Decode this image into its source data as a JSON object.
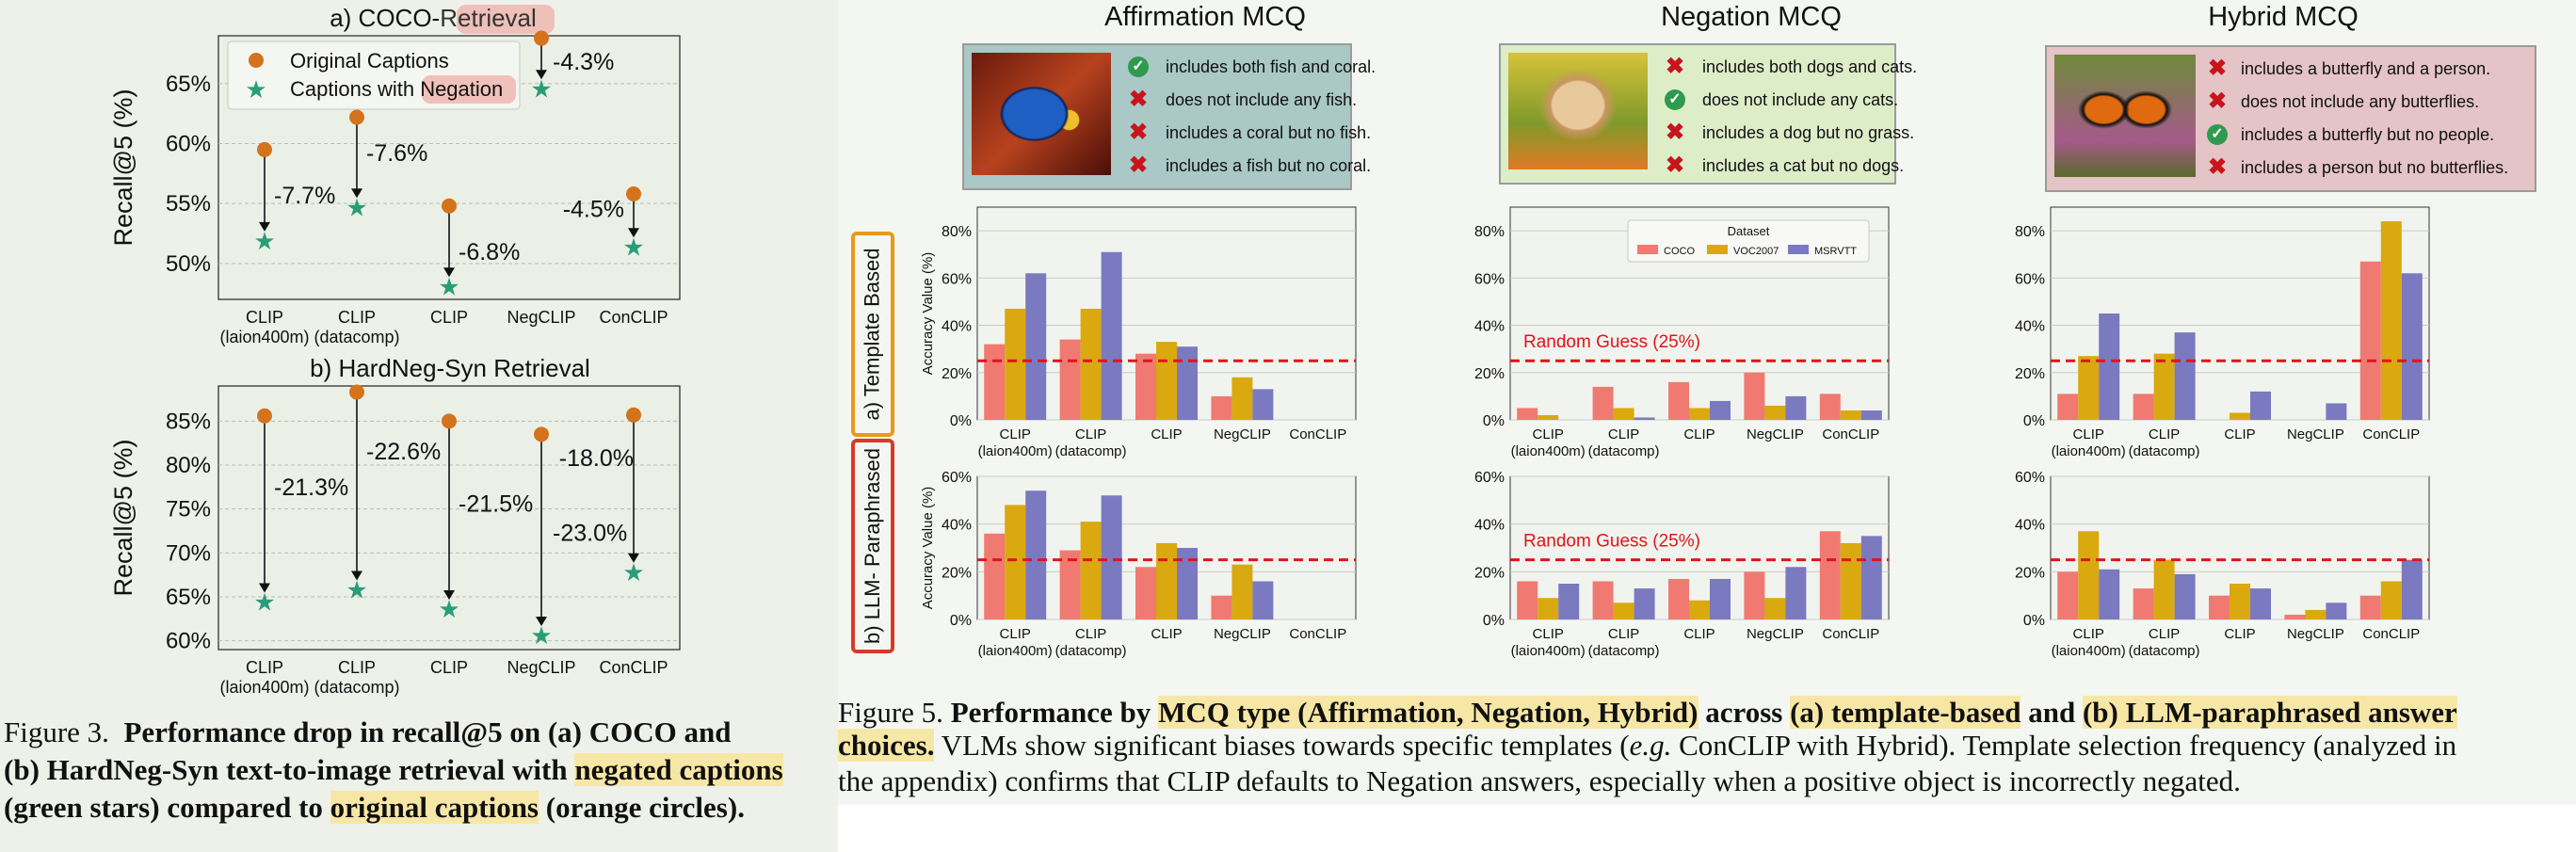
{
  "fig3": {
    "caption_prefix": "Figure 3.",
    "caption_bold_1": "Performance drop in recall@5 on (a) COCO and",
    "caption_bold_2": "(b) HardNeg-Syn text-to-image retrieval with",
    "caption_hl_neg": "negated captions",
    "caption_bold_3": "(green stars) compared to",
    "caption_hl_orig": "original captions",
    "caption_end": "(orange circles)."
  },
  "fig5": {
    "caption_prefix": "Figure 5.",
    "caption_bold_1": "Performance by",
    "caption_hl_1": "MCQ type (Affirmation, Negation, Hybrid)",
    "caption_bold_2": "across",
    "caption_hl_2": "(a) template-based",
    "caption_bold_3": "and",
    "caption_hl_3": "(b) LLM-paraphrased answer",
    "caption_hl_4": "choices.",
    "caption_line2_rest": "VLMs show significant biases towards specific templates (",
    "caption_eg": "e.g.",
    "caption_line2_end": "ConCLIP with Hybrid). Template selection frequency (analyzed in",
    "caption_line3": "the appendix) confirms that CLIP defaults to Negation answers, especially when a positive object is incorrectly negated.",
    "row_labels": [
      "a) Template Based",
      "b) LLM- Paraphrased"
    ],
    "mcq": [
      {
        "title": "Affirmation MCQ",
        "bg": "#a9c8c6",
        "image": "blue-fish-photo",
        "options": [
          {
            "text": "includes both fish and coral.",
            "correct": true
          },
          {
            "text": "does not include any fish.",
            "correct": false
          },
          {
            "text": "includes a coral but no fish.",
            "correct": false
          },
          {
            "text": "includes a fish but no coral.",
            "correct": false
          }
        ]
      },
      {
        "title": "Negation MCQ",
        "bg": "#dcedc8",
        "image": "puppy-photo",
        "options": [
          {
            "text": "includes both dogs and cats.",
            "correct": false
          },
          {
            "text": "does not include any cats.",
            "correct": true
          },
          {
            "text": "includes a dog but no grass.",
            "correct": false
          },
          {
            "text": "includes a cat but no dogs.",
            "correct": false
          }
        ]
      },
      {
        "title": "Hybrid MCQ",
        "bg": "#e4c4c6",
        "image": "butterfly-photo",
        "options": [
          {
            "text": "includes a butterfly and a person.",
            "correct": false
          },
          {
            "text": "does not include any butterflies.",
            "correct": false
          },
          {
            "text": "includes a butterfly but no people.",
            "correct": true
          },
          {
            "text": "includes a person but no butterflies.",
            "correct": false
          }
        ]
      }
    ]
  },
  "colors": {
    "orange": "#d4731c",
    "green": "#2a9d78",
    "coco": "#f07a72",
    "voc": "#d9a90f",
    "msr": "#7b79c0",
    "random": "#e0141b",
    "template_border": "#e89a17",
    "llm_border": "#d83a2a"
  },
  "chart_data": [
    {
      "id": "coco",
      "type": "scatter",
      "title_prefix": "a) COCO-",
      "title_hl": "Retrieval",
      "ylabel": "Recall@5 (%)",
      "categories": [
        "CLIP\n(laion400m)",
        "CLIP\n(datacomp)",
        "CLIP",
        "NegCLIP",
        "ConCLIP"
      ],
      "ylim": [
        47,
        69
      ],
      "yticks": [
        50,
        55,
        60,
        65
      ],
      "series": [
        {
          "name": "Original Captions",
          "values": [
            59.5,
            62.2,
            54.8,
            68.8,
            55.8
          ]
        },
        {
          "name": "Captions with Negation",
          "values": [
            51.8,
            54.6,
            48.0,
            64.5,
            51.3
          ]
        }
      ],
      "drops": [
        "-7.7%",
        "-7.6%",
        "-6.8%",
        "-4.3%",
        "-4.5%"
      ],
      "legend_hl_word": "Negation",
      "legend_position": "top-left"
    },
    {
      "id": "hardneg",
      "type": "scatter",
      "title": "b) HardNeg-Syn Retrieval",
      "ylabel": "Recall@5 (%)",
      "categories": [
        "CLIP\n(laion400m)",
        "CLIP\n(datacomp)",
        "CLIP",
        "NegCLIP",
        "ConCLIP"
      ],
      "ylim": [
        59,
        89
      ],
      "yticks": [
        60,
        65,
        70,
        75,
        80,
        85
      ],
      "series": [
        {
          "name": "Original Captions",
          "values": [
            85.6,
            88.3,
            85.0,
            83.5,
            85.7
          ]
        },
        {
          "name": "Captions with Negation",
          "values": [
            64.3,
            65.7,
            63.5,
            60.5,
            67.7
          ]
        }
      ],
      "drops": [
        "-21.3%",
        "-22.6%",
        "-21.5%",
        "-23.0%",
        "-18.0%"
      ]
    },
    {
      "id": "template-affirmation",
      "type": "bar",
      "categories": [
        "CLIP\n(laion400m)",
        "CLIP\n(datacomp)",
        "CLIP",
        "NegCLIP",
        "ConCLIP"
      ],
      "ylim": [
        0,
        90
      ],
      "yticks": [
        0,
        20,
        40,
        60,
        80
      ],
      "ylabel": "Accuracy Value (%)",
      "series": [
        {
          "name": "COCO",
          "values": [
            32,
            34,
            28,
            10,
            0
          ]
        },
        {
          "name": "VOC2007",
          "values": [
            47,
            47,
            33,
            18,
            0
          ]
        },
        {
          "name": "MSRVTT",
          "values": [
            62,
            71,
            31,
            13,
            0
          ]
        }
      ],
      "random_guess": 25
    },
    {
      "id": "template-negation",
      "type": "bar",
      "categories": [
        "CLIP\n(laion400m)",
        "CLIP\n(datacomp)",
        "CLIP",
        "NegCLIP",
        "ConCLIP"
      ],
      "ylim": [
        0,
        90
      ],
      "yticks": [
        0,
        20,
        40,
        60,
        80
      ],
      "series": [
        {
          "name": "COCO",
          "values": [
            5,
            14,
            16,
            20,
            11
          ]
        },
        {
          "name": "VOC2007",
          "values": [
            2,
            5,
            5,
            6,
            4
          ]
        },
        {
          "name": "MSRVTT",
          "values": [
            0,
            1,
            8,
            10,
            4
          ]
        }
      ],
      "random_guess": 25,
      "random_label": "Random Guess (25%)",
      "legend": {
        "title": "Dataset",
        "items": [
          "COCO",
          "VOC2007",
          "MSRVTT"
        ],
        "position": "top-center"
      }
    },
    {
      "id": "template-hybrid",
      "type": "bar",
      "categories": [
        "CLIP\n(laion400m)",
        "CLIP\n(datacomp)",
        "CLIP",
        "NegCLIP",
        "ConCLIP"
      ],
      "ylim": [
        0,
        90
      ],
      "yticks": [
        0,
        20,
        40,
        60,
        80
      ],
      "series": [
        {
          "name": "COCO",
          "values": [
            11,
            11,
            0,
            0,
            67
          ]
        },
        {
          "name": "VOC2007",
          "values": [
            27,
            28,
            3,
            0,
            84
          ]
        },
        {
          "name": "MSRVTT",
          "values": [
            45,
            37,
            12,
            7,
            62
          ]
        }
      ],
      "random_guess": 25
    },
    {
      "id": "llm-affirmation",
      "type": "bar",
      "categories": [
        "CLIP\n(laion400m)",
        "CLIP\n(datacomp)",
        "CLIP",
        "NegCLIP",
        "ConCLIP"
      ],
      "ylim": [
        0,
        60
      ],
      "yticks": [
        0,
        20,
        40,
        60
      ],
      "ylabel": "Accuracy Value (%)",
      "series": [
        {
          "name": "COCO",
          "values": [
            36,
            29,
            22,
            10,
            0
          ]
        },
        {
          "name": "VOC2007",
          "values": [
            48,
            41,
            32,
            23,
            0
          ]
        },
        {
          "name": "MSRVTT",
          "values": [
            54,
            52,
            30,
            16,
            0
          ]
        }
      ],
      "random_guess": 25
    },
    {
      "id": "llm-negation",
      "type": "bar",
      "categories": [
        "CLIP\n(laion400m)",
        "CLIP\n(datacomp)",
        "CLIP",
        "NegCLIP",
        "ConCLIP"
      ],
      "ylim": [
        0,
        60
      ],
      "yticks": [
        0,
        20,
        40,
        60
      ],
      "series": [
        {
          "name": "COCO",
          "values": [
            16,
            16,
            17,
            20,
            37
          ]
        },
        {
          "name": "VOC2007",
          "values": [
            9,
            7,
            8,
            9,
            32
          ]
        },
        {
          "name": "MSRVTT",
          "values": [
            15,
            13,
            17,
            22,
            35
          ]
        }
      ],
      "random_guess": 25,
      "random_label": "Random Guess (25%)"
    },
    {
      "id": "llm-hybrid",
      "type": "bar",
      "categories": [
        "CLIP\n(laion400m)",
        "CLIP\n(datacomp)",
        "CLIP",
        "NegCLIP",
        "ConCLIP"
      ],
      "ylim": [
        0,
        60
      ],
      "yticks": [
        0,
        20,
        40,
        60
      ],
      "series": [
        {
          "name": "COCO",
          "values": [
            20,
            13,
            10,
            2,
            10
          ]
        },
        {
          "name": "VOC2007",
          "values": [
            37,
            25,
            15,
            4,
            16
          ]
        },
        {
          "name": "MSRVTT",
          "values": [
            21,
            19,
            13,
            7,
            25
          ]
        }
      ],
      "random_guess": 25
    }
  ]
}
